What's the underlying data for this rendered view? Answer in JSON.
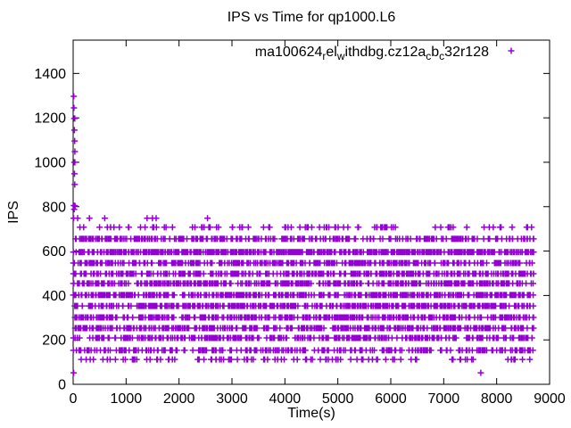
{
  "figure": {
    "background_color": "#ffffff",
    "text_color": "#000000",
    "border_color": "#000000"
  },
  "chart_data": {
    "type": "scatter",
    "title": "IPS vs Time for qp1000.L6",
    "xlabel": "Time(s)",
    "ylabel": "IPS",
    "xlim": [
      0,
      9000
    ],
    "ylim": [
      0,
      1550
    ],
    "xticks": [
      0,
      1000,
      2000,
      3000,
      4000,
      5000,
      6000,
      7000,
      8000,
      9000
    ],
    "yticks": [
      0,
      200,
      400,
      600,
      800,
      1000,
      1200,
      1400
    ],
    "grid": false,
    "marker": {
      "shape": "plus",
      "color": "#9400d3",
      "size": 7,
      "stroke_width": 1.5
    },
    "legend": {
      "position": "top-right-inside",
      "label": "ma100624_rel_withdbg.cz12a_cb_c32r128",
      "label_segments": [
        {
          "text": "ma100624",
          "sub": false
        },
        {
          "text": "r",
          "sub": true
        },
        {
          "text": "el",
          "sub": false
        },
        {
          "text": "w",
          "sub": true
        },
        {
          "text": "ithdbg.cz12a",
          "sub": false
        },
        {
          "text": "c",
          "sub": true
        },
        {
          "text": "b",
          "sub": false
        },
        {
          "text": "c",
          "sub": true
        },
        {
          "text": "32r128",
          "sub": false
        }
      ],
      "marker": "plus",
      "color": "#9400d3"
    },
    "series": [
      {
        "name": "ma100624_rel_withdbg.cz12a_cb_c32r128",
        "bands": [
          {
            "ips": 707,
            "count": 85,
            "t_min": 30,
            "t_max": 8700
          },
          {
            "ips": 655,
            "count": 300,
            "t_min": 0,
            "t_max": 8700
          },
          {
            "ips": 595,
            "count": 550,
            "t_min": 0,
            "t_max": 8700
          },
          {
            "ips": 546,
            "count": 340,
            "t_min": 0,
            "t_max": 8700
          },
          {
            "ips": 498,
            "count": 350,
            "t_min": 0,
            "t_max": 8700
          },
          {
            "ips": 454,
            "count": 390,
            "t_min": 0,
            "t_max": 8700
          },
          {
            "ips": 402,
            "count": 410,
            "t_min": 0,
            "t_max": 8700
          },
          {
            "ips": 353,
            "count": 410,
            "t_min": 0,
            "t_max": 8700
          },
          {
            "ips": 301,
            "count": 360,
            "t_min": 0,
            "t_max": 8700
          },
          {
            "ips": 253,
            "count": 360,
            "t_min": 0,
            "t_max": 8700
          },
          {
            "ips": 209,
            "count": 320,
            "t_min": 0,
            "t_max": 8700
          },
          {
            "ips": 153,
            "count": 230,
            "t_min": 0,
            "t_max": 8700
          },
          {
            "ips": 112,
            "count": 100,
            "t_min": 0,
            "t_max": 8700
          }
        ],
        "outlier_points": [
          [
            12,
            1297
          ],
          [
            16,
            1245
          ],
          [
            20,
            1197
          ],
          [
            30,
            1197
          ],
          [
            24,
            1145
          ],
          [
            28,
            1096
          ],
          [
            32,
            1048
          ],
          [
            22,
            1000
          ],
          [
            32,
            1000
          ],
          [
            26,
            948
          ],
          [
            30,
            900
          ],
          [
            14,
            805
          ],
          [
            36,
            803
          ],
          [
            18,
            788
          ],
          [
            10,
            748
          ],
          [
            85,
            748
          ],
          [
            306,
            748
          ],
          [
            596,
            748
          ],
          [
            1397,
            748
          ],
          [
            1499,
            748
          ],
          [
            1567,
            748
          ],
          [
            2538,
            748
          ],
          [
            10,
            52
          ],
          [
            7700,
            52
          ]
        ]
      }
    ],
    "rng_seed": 20100624
  }
}
